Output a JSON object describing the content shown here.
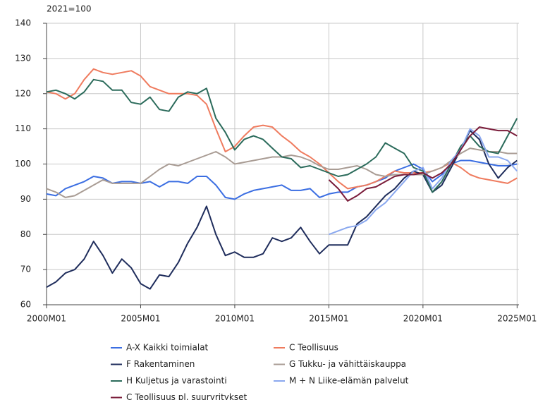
{
  "chart_data": {
    "type": "line",
    "unit_label": "2021=100",
    "x": [
      2000,
      2000.5,
      2001,
      2001.5,
      2002,
      2002.5,
      2003,
      2003.5,
      2004,
      2004.5,
      2005,
      2005.5,
      2006,
      2006.5,
      2007,
      2007.5,
      2008,
      2008.5,
      2009,
      2009.5,
      2010,
      2010.5,
      2011,
      2011.5,
      2012,
      2012.5,
      2013,
      2013.5,
      2014,
      2014.5,
      2015,
      2015.5,
      2016,
      2016.5,
      2017,
      2017.5,
      2018,
      2018.5,
      2019,
      2019.5,
      2020,
      2020.5,
      2021,
      2021.5,
      2022,
      2022.5,
      2023,
      2023.5,
      2024,
      2024.5,
      2025
    ],
    "xlim": [
      2000,
      2025.1
    ],
    "xticks": [
      {
        "value": 2000,
        "label": "2000M01"
      },
      {
        "value": 2005,
        "label": "2005M01"
      },
      {
        "value": 2010,
        "label": "2010M01"
      },
      {
        "value": 2015,
        "label": "2015M01"
      },
      {
        "value": 2020,
        "label": "2020M01"
      },
      {
        "value": 2025,
        "label": "2025M01"
      }
    ],
    "ylim": [
      60,
      140
    ],
    "yticks": [
      60,
      70,
      80,
      90,
      100,
      110,
      120,
      130,
      140
    ],
    "grid": true,
    "series": [
      {
        "name": "A-X Kaikki toimialat",
        "color": "#3b6ee2",
        "values": [
          91.5,
          91,
          93,
          94,
          95,
          96.5,
          96,
          94.5,
          95,
          95,
          94.5,
          95,
          93.5,
          95,
          95,
          94.5,
          96.5,
          96.5,
          94,
          90.5,
          90,
          91.5,
          92.5,
          93,
          93.5,
          94,
          92.5,
          92.5,
          93,
          90.5,
          91.5,
          92,
          92,
          93.5,
          94,
          95,
          96,
          98,
          99,
          100,
          98.5,
          95,
          97,
          100,
          101,
          101,
          100.5,
          100,
          99.5,
          99.5,
          100
        ]
      },
      {
        "name": "C Teollisuus",
        "color": "#ef7b5e",
        "values": [
          120.5,
          120,
          118.5,
          120,
          124,
          127,
          126,
          125.5,
          126,
          126.5,
          125,
          122,
          121,
          120,
          120,
          120,
          119.5,
          117,
          110,
          103.5,
          105,
          108,
          110.5,
          111,
          110.5,
          108,
          106,
          103.5,
          102,
          100,
          97.5,
          95,
          93,
          93.5,
          94,
          95,
          96.5,
          98,
          97.5,
          97.5,
          97.5,
          98,
          99,
          100.5,
          99,
          97,
          96,
          95.5,
          95,
          94.5,
          96
        ]
      },
      {
        "name": "F Rakentaminen",
        "color": "#1f2d5c",
        "values": [
          65,
          66.5,
          69,
          70,
          73,
          78,
          74,
          69,
          73,
          70.5,
          66,
          64.5,
          68.5,
          68,
          72,
          77.5,
          82,
          88,
          80,
          74,
          75,
          73.5,
          73.5,
          74.5,
          79,
          78,
          79,
          82,
          78,
          74.5,
          77,
          77,
          77,
          83,
          85,
          88,
          91,
          93,
          96,
          98,
          97,
          92,
          94,
          99,
          104,
          109.5,
          107,
          100,
          96,
          99,
          101
        ]
      },
      {
        "name": "G Tukku- ja vähittäiskauppa",
        "color": "#a99c94",
        "values": [
          93,
          92,
          90.5,
          91,
          92.5,
          94,
          95.5,
          94.5,
          94.5,
          94.5,
          94.5,
          96.5,
          98.5,
          100,
          99.5,
          100.5,
          101.5,
          102.5,
          103.5,
          102,
          100,
          100.5,
          101,
          101.5,
          102,
          102,
          102.5,
          102,
          101,
          99.5,
          98.5,
          98.5,
          99,
          99.5,
          98.5,
          97,
          96.5,
          97,
          97,
          97,
          97,
          98,
          99,
          101,
          103,
          104.5,
          104,
          103.5,
          103.5,
          103,
          103
        ]
      },
      {
        "name": "H Kuljetus ja varastointi",
        "color": "#2b6b5b",
        "values": [
          120.5,
          121,
          120,
          118.5,
          120.5,
          124,
          123.5,
          121,
          121,
          117.5,
          117,
          119,
          115.5,
          115,
          119,
          120.5,
          120,
          121.5,
          113,
          109,
          104,
          107,
          108,
          107,
          104.5,
          102,
          101.5,
          99,
          99.5,
          98.5,
          97.5,
          96.5,
          97,
          98.5,
          100,
          102,
          106,
          104.5,
          103,
          99,
          98,
          92,
          95,
          100,
          105,
          108,
          105,
          103.5,
          103,
          108,
          113
        ]
      },
      {
        "name": "M + N Liike-elämän palvelut",
        "color": "#8aa8ef",
        "values": [
          null,
          null,
          null,
          null,
          null,
          null,
          null,
          null,
          null,
          null,
          null,
          null,
          null,
          null,
          null,
          null,
          null,
          null,
          null,
          null,
          null,
          null,
          null,
          null,
          null,
          null,
          null,
          null,
          null,
          null,
          80,
          81,
          82,
          82.5,
          84,
          87,
          89,
          92,
          95,
          98,
          99,
          93,
          96,
          101,
          104,
          110,
          108,
          102,
          102,
          101,
          98
        ]
      },
      {
        "name": "C Teollisuus pl. suuryritykset",
        "color": "#7a1c3a",
        "values": [
          null,
          null,
          null,
          null,
          null,
          null,
          null,
          null,
          null,
          null,
          null,
          null,
          null,
          null,
          null,
          null,
          null,
          null,
          null,
          null,
          null,
          null,
          null,
          null,
          null,
          null,
          null,
          null,
          null,
          null,
          95.5,
          93,
          89.5,
          91,
          93,
          93.5,
          95,
          96.5,
          97,
          97,
          97.5,
          96,
          97.5,
          100,
          104,
          108,
          110.5,
          110,
          109.5,
          109.5,
          108
        ]
      }
    ]
  }
}
